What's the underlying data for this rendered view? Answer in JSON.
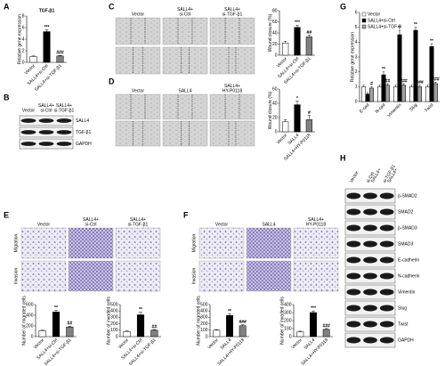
{
  "chart_data": [
    {
      "type": "bar",
      "title": "TGF-β1",
      "ylabel": "Relative gene expression",
      "categories": [
        "Vector",
        "SALL4+si-Ctrl",
        "SALL4+si-TGF-β1"
      ],
      "values": [
        1,
        5.3,
        1.1
      ],
      "errors": [
        0.1,
        0.3,
        0.1
      ],
      "annotations": [
        null,
        "***",
        "###"
      ],
      "colors": [
        "#ffffff",
        "#000000",
        "#808080"
      ],
      "ylim": [
        0,
        8
      ],
      "yticks": [
        0,
        2,
        4,
        6,
        8
      ]
    },
    {
      "type": "bar",
      "ylabel": "Wound closure (%)",
      "categories": [
        "Vector",
        "SALL4+si-Ctrl",
        "SALL4+si-TGF-β1"
      ],
      "values": [
        22,
        50,
        33
      ],
      "errors": [
        3,
        4,
        3
      ],
      "annotations": [
        null,
        "***",
        "##"
      ],
      "colors": [
        "#ffffff",
        "#000000",
        "#808080"
      ],
      "ylim": [
        0,
        80
      ],
      "yticks": [
        0,
        20,
        40,
        60,
        80
      ]
    },
    {
      "type": "bar",
      "ylabel": "Wound closure (%)",
      "categories": [
        "Vector",
        "SALL4",
        "SALL4+HY-P0118"
      ],
      "values": [
        14,
        38,
        17
      ],
      "errors": [
        3,
        5,
        6
      ],
      "annotations": [
        null,
        "*",
        "#"
      ],
      "colors": [
        "#ffffff",
        "#000000",
        "#808080"
      ],
      "ylim": [
        0,
        60
      ],
      "yticks": [
        0,
        20,
        40,
        60
      ]
    },
    {
      "type": "bar",
      "ylabel": "Number of migrated cells",
      "categories": [
        "Vector",
        "SALL4+si-Ctrl",
        "SALL4+si-TGF-β1"
      ],
      "values": [
        110,
        460,
        180
      ],
      "errors": [
        10,
        30,
        15
      ],
      "annotations": [
        null,
        "**",
        "##"
      ],
      "colors": [
        "#ffffff",
        "#000000",
        "#808080"
      ],
      "ylim": [
        0,
        600
      ],
      "yticks": [
        0,
        200,
        400,
        600
      ]
    },
    {
      "type": "bar",
      "ylabel": "Number of invaded cells",
      "categories": [
        "Vector",
        "SALL4+si-Ctrl",
        "SALL4+si-TGF-β1"
      ],
      "values": [
        80,
        340,
        100
      ],
      "errors": [
        10,
        40,
        10
      ],
      "annotations": [
        null,
        "**",
        "##"
      ],
      "colors": [
        "#ffffff",
        "#000000",
        "#808080"
      ],
      "ylim": [
        0,
        500
      ],
      "yticks": [
        0,
        100,
        200,
        300,
        400,
        500
      ]
    },
    {
      "type": "bar",
      "ylabel": "Number of migrated cells",
      "categories": [
        "Vector",
        "SALL4",
        "SALL4+HY-P0118"
      ],
      "values": [
        100,
        330,
        170
      ],
      "errors": [
        8,
        25,
        15
      ],
      "annotations": [
        null,
        "**",
        "###"
      ],
      "colors": [
        "#ffffff",
        "#000000",
        "#808080"
      ],
      "ylim": [
        0,
        500
      ],
      "yticks": [
        0,
        100,
        200,
        300,
        400,
        500
      ]
    },
    {
      "type": "bar",
      "ylabel": "Number of invaded cells",
      "categories": [
        "Vector",
        "SALL4",
        "SALL4+HY-P0118"
      ],
      "values": [
        60,
        300,
        90
      ],
      "errors": [
        8,
        20,
        10
      ],
      "annotations": [
        null,
        "***",
        "###"
      ],
      "colors": [
        "#ffffff",
        "#000000",
        "#808080"
      ],
      "ylim": [
        0,
        400
      ],
      "yticks": [
        0,
        100,
        200,
        300,
        400
      ]
    },
    {
      "type": "bar",
      "ylabel": "Relative gene expression",
      "categories": [
        "E-cad",
        "N-cad",
        "Vimentin",
        "Slug",
        "Twist"
      ],
      "series": [
        {
          "name": "Vector",
          "color": "#ffffff",
          "values": [
            1,
            1,
            1,
            1,
            1
          ],
          "errors": [
            0.1,
            0.1,
            0.1,
            0.1,
            0.1
          ],
          "annotations": [
            null,
            null,
            null,
            null,
            null
          ]
        },
        {
          "name": "SALL4+si-Ctrl",
          "color": "#000000",
          "values": [
            0.5,
            1.8,
            4.5,
            4.8,
            3.7
          ],
          "errors": [
            0.1,
            0.2,
            0.3,
            0.2,
            0.2
          ],
          "annotations": [
            null,
            "**",
            "**",
            "**",
            "**"
          ]
        },
        {
          "name": "SALL4+si-TGF-β",
          "color": "#a0a0a0",
          "values": [
            0.9,
            1.1,
            1.1,
            1.0,
            1.2
          ],
          "errors": [
            0.1,
            0.1,
            0.1,
            0.1,
            0.1
          ],
          "annotations": [
            "#",
            "##",
            "###",
            "###",
            "###"
          ]
        }
      ],
      "ylim": [
        0,
        6
      ],
      "yticks": [
        0,
        1,
        2,
        3,
        4,
        5,
        6
      ]
    }
  ],
  "panels": {
    "letters": [
      "A",
      "B",
      "C",
      "D",
      "E",
      "F",
      "G",
      "H"
    ],
    "B": {
      "columns": [
        [
          "Vector"
        ],
        [
          "SALL4+",
          "si-Ctrl"
        ],
        [
          "SALL4+",
          "si-TGF-β1"
        ]
      ],
      "rows": [
        "SALL4",
        "TGF-β1",
        "GAPDH"
      ]
    },
    "C": {
      "columns": [
        [
          "Vector"
        ],
        [
          "SALL4+",
          "si-Ctrl"
        ],
        [
          "SALL4+",
          "si-TGF-β1"
        ]
      ]
    },
    "D": {
      "columns": [
        [
          "Vector"
        ],
        [
          "SALL4"
        ],
        [
          "SALL4+",
          "HY-P0118"
        ]
      ]
    },
    "E": {
      "columns": [
        [
          "Vector"
        ],
        [
          "SALL4+",
          "si-Ctrl"
        ],
        [
          "SALL4+",
          "si-TGF-β1"
        ]
      ],
      "rows": [
        "Migration",
        "Invasion"
      ]
    },
    "F": {
      "columns": [
        [
          "Vector"
        ],
        [
          "SALL4"
        ],
        [
          "SALL4+",
          "HY-P0118"
        ]
      ],
      "rows": [
        "Migration",
        "Invasion"
      ]
    },
    "H": {
      "columns": [
        [
          "Vector"
        ],
        [
          "SALL4+",
          "si-Ctrl"
        ],
        [
          "SALL4+",
          "si-TGF-β1"
        ]
      ],
      "rows": [
        "p-SMAD2",
        "SMAD2",
        "p-SMAD3",
        "SMAD3",
        "E-cadherin",
        "N-cadherin",
        "Vimentin",
        "Slug",
        "Twist",
        "GAPDH"
      ]
    }
  }
}
